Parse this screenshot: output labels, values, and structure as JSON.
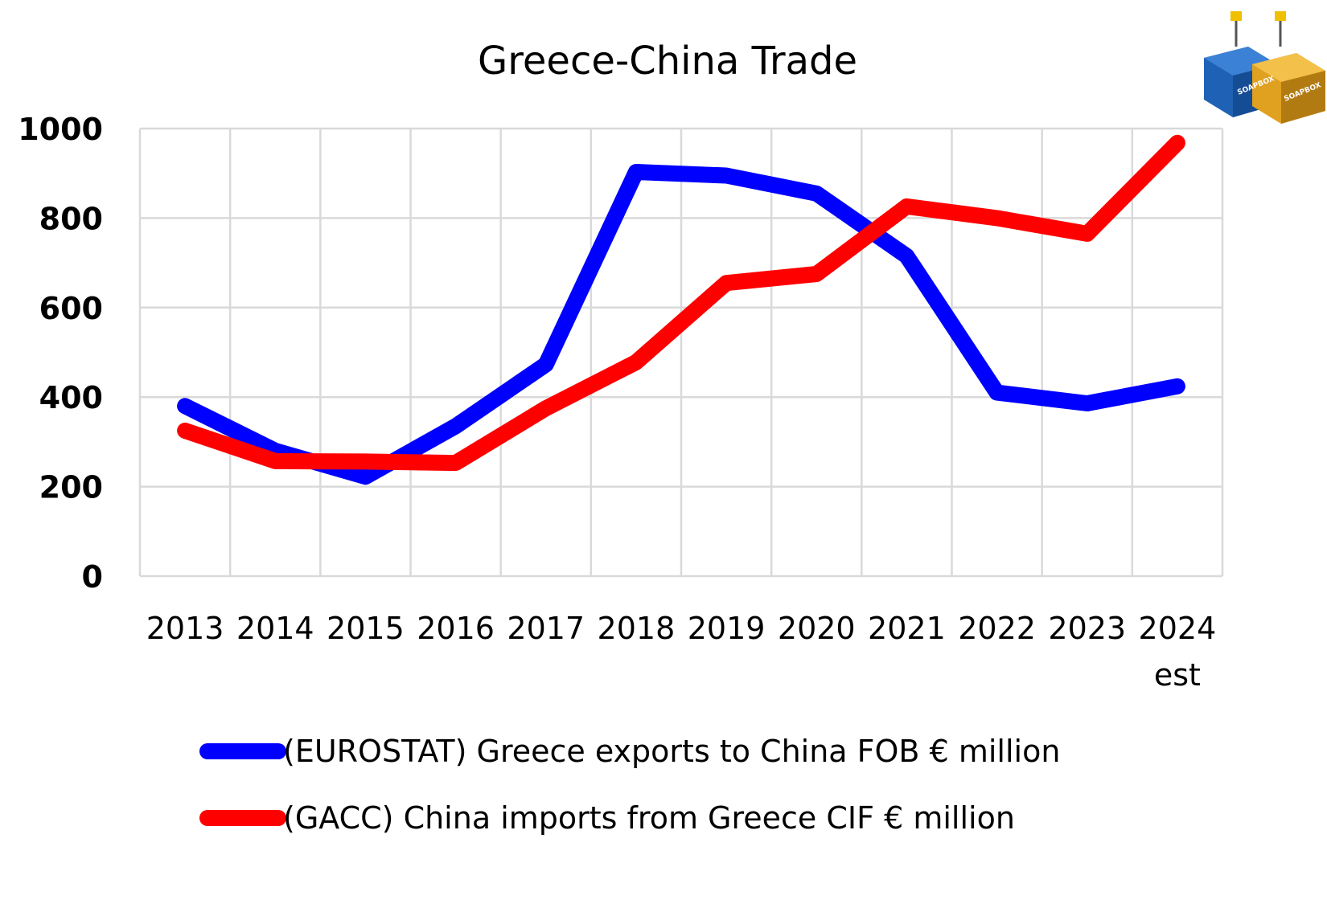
{
  "chart_data": {
    "type": "line",
    "title": "Greece-China Trade",
    "categories": [
      "2013",
      "2014",
      "2015",
      "2016",
      "2017",
      "2018",
      "2019",
      "2020",
      "2021",
      "2022",
      "2023",
      "2024"
    ],
    "category_sublabels": [
      "",
      "",
      "",
      "",
      "",
      "",
      "",
      "",
      "",
      "",
      "",
      "est"
    ],
    "ylim": [
      0,
      1000
    ],
    "yticks": [
      0,
      200,
      400,
      600,
      800,
      1000
    ],
    "grid": true,
    "legend_position": "bottom",
    "series": [
      {
        "name": "(EUROSTAT) Greece exports to China FOB € million",
        "color": "#0000ff",
        "values": [
          380,
          280,
          222,
          335,
          473,
          903,
          895,
          855,
          715,
          410,
          386,
          424
        ]
      },
      {
        "name": "(GACC) China imports from Greece CIF € million",
        "color": "#ff0000",
        "values": [
          325,
          257,
          256,
          253,
          375,
          478,
          655,
          675,
          826,
          800,
          765,
          968
        ]
      }
    ]
  },
  "logo": {
    "icon": "shipping-containers-logo",
    "text_left": "SOAPBOX",
    "text_right": "SOAPBOX"
  }
}
